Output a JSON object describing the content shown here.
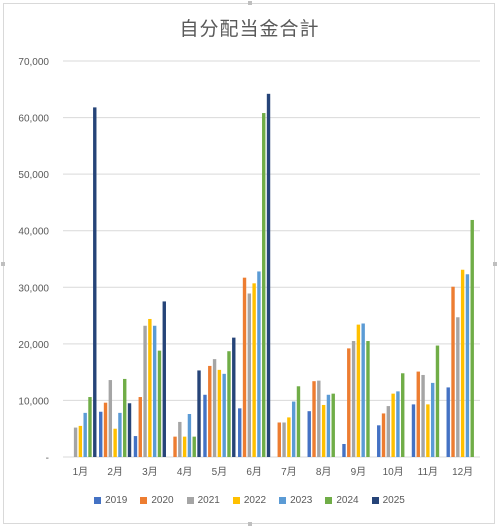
{
  "chart_data": {
    "type": "bar",
    "title": "自分配当金合計",
    "categories": [
      "1月",
      "2月",
      "3月",
      "4月",
      "5月",
      "6月",
      "7月",
      "8月",
      "9月",
      "10月",
      "11月",
      "12月"
    ],
    "yticks": [
      "-",
      "10,000",
      "20,000",
      "30,000",
      "40,000",
      "50,000",
      "60,000",
      "70,000"
    ],
    "ylim": [
      0,
      70000
    ],
    "grid": true,
    "legend_position": "bottom",
    "series": [
      {
        "name": "2019",
        "color": "#4472C4",
        "values": [
          0,
          8000,
          3700,
          0,
          11000,
          8600,
          0,
          8100,
          2300,
          5600,
          9300,
          12300
        ]
      },
      {
        "name": "2020",
        "color": "#ED7D31",
        "values": [
          0,
          9600,
          10600,
          3600,
          16100,
          31700,
          6100,
          13400,
          19200,
          7700,
          15100,
          30100
        ]
      },
      {
        "name": "2021",
        "color": "#A5A5A5",
        "values": [
          5200,
          13600,
          23200,
          6200,
          17300,
          28900,
          6100,
          13500,
          20500,
          9000,
          14500,
          24700
        ]
      },
      {
        "name": "2022",
        "color": "#FFC000",
        "values": [
          5500,
          5000,
          24400,
          3600,
          15400,
          30700,
          7000,
          9200,
          23400,
          11200,
          9300,
          33100
        ]
      },
      {
        "name": "2023",
        "color": "#5B9BD5",
        "values": [
          7800,
          7800,
          23200,
          7600,
          14700,
          32800,
          9800,
          11000,
          23600,
          11600,
          13100,
          32300
        ]
      },
      {
        "name": "2024",
        "color": "#70AD47",
        "values": [
          10600,
          13800,
          18800,
          3600,
          18700,
          60800,
          12500,
          11200,
          20500,
          14800,
          19700,
          41900
        ]
      },
      {
        "name": "2025",
        "color": "#264478",
        "values": [
          61800,
          9500,
          27500,
          15300,
          21100,
          64200,
          0,
          0,
          0,
          0,
          0,
          0
        ]
      }
    ]
  }
}
